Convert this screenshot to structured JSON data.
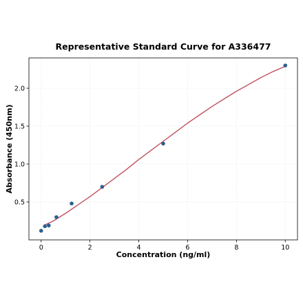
{
  "chart_data": {
    "type": "scatter",
    "title": "Representative Standard Curve for A336477",
    "xlabel": "Concentration (ng/ml)",
    "ylabel": "Absorbance (450nm)",
    "xlim": [
      -0.5,
      10.5
    ],
    "ylim": [
      0.0,
      2.4
    ],
    "xticks": [
      0,
      2,
      4,
      6,
      8,
      10
    ],
    "yticks": [
      0.5,
      1.0,
      1.5,
      2.0
    ],
    "xtick_labels": [
      "0",
      "2",
      "4",
      "6",
      "8",
      "10"
    ],
    "ytick_labels": [
      "0.5",
      "1.0",
      "1.5",
      "2.0"
    ],
    "grid": true,
    "series": [
      {
        "kind": "points",
        "color": "#2c5f8f",
        "x": [
          0,
          0.156,
          0.313,
          0.625,
          1.25,
          2.5,
          5,
          10
        ],
        "y": [
          0.12,
          0.18,
          0.19,
          0.3,
          0.48,
          0.7,
          1.27,
          2.3
        ]
      },
      {
        "kind": "fit-line",
        "color": "#c05060",
        "x": [
          0.1,
          0.5,
          1,
          1.5,
          2,
          2.5,
          3,
          3.5,
          4,
          4.5,
          5,
          5.5,
          6,
          6.5,
          7,
          7.5,
          8,
          8.5,
          9,
          9.5,
          10
        ],
        "y": [
          0.19,
          0.25,
          0.35,
          0.46,
          0.57,
          0.69,
          0.81,
          0.93,
          1.06,
          1.18,
          1.3,
          1.42,
          1.54,
          1.65,
          1.76,
          1.86,
          1.96,
          2.05,
          2.14,
          2.22,
          2.29
        ]
      }
    ]
  }
}
